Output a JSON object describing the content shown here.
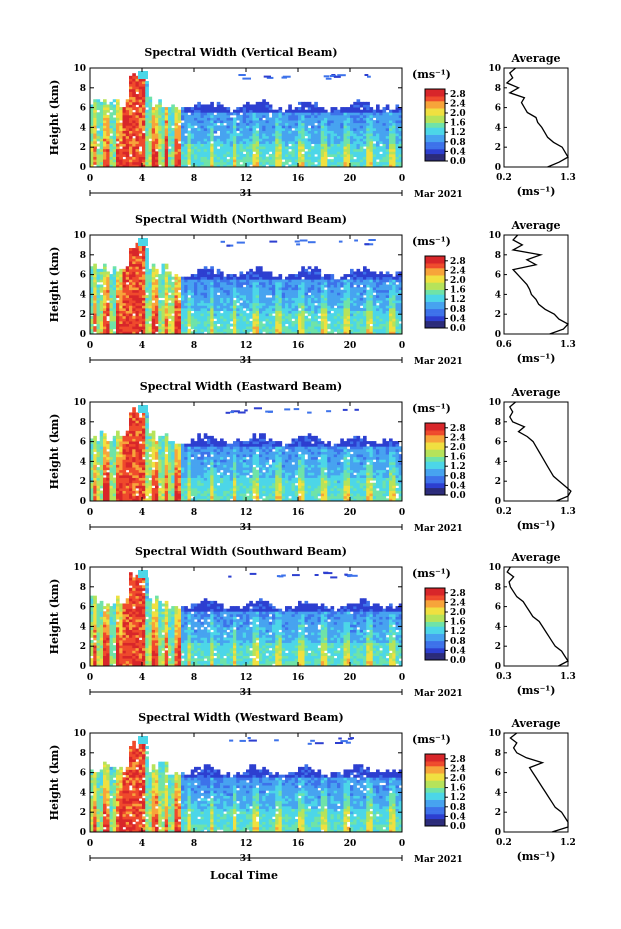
{
  "page": {
    "background": "#ffffff"
  },
  "shared": {
    "height_ticks": [
      "0",
      "2",
      "4",
      "6",
      "8",
      "10"
    ],
    "time_ticks": [
      "0",
      "4",
      "8",
      "12",
      "16",
      "20",
      "0"
    ],
    "day_label": "31",
    "date_label": "Mar 2021",
    "ylabel": "Height (km)",
    "xlabel": "Local Time",
    "colorbar_unit_label": "(ms⁻¹)",
    "colorbar_ticks": [
      "0.0",
      "0.4",
      "0.8",
      "1.2",
      "1.6",
      "2.0",
      "2.4",
      "2.8"
    ],
    "avg_title": "Average",
    "avg_unit_label": "(ms⁻¹)",
    "colormap": [
      "#2b2b7a",
      "#2d3fd0",
      "#3d72ea",
      "#47a3f0",
      "#4cd6e8",
      "#6fe3a8",
      "#b6e35a",
      "#f0e040",
      "#f7a43a",
      "#ef4a2c",
      "#d8262a"
    ]
  },
  "chart_data": [
    {
      "type": "heatmap",
      "title": "Spectral Width (Vertical Beam)",
      "x_range_hours": [
        0,
        24
      ],
      "y_range_km": [
        0,
        10
      ],
      "value_range": [
        0,
        3.0
      ],
      "avg_x_ticks": [
        "0.2",
        "1.3"
      ],
      "avg_x_range": [
        0.2,
        1.3
      ],
      "avg_profile": {
        "height_km": [
          0,
          0.5,
          1,
          1.5,
          2,
          2.5,
          3,
          3.5,
          4,
          4.5,
          5,
          5.5,
          6,
          6.5,
          7,
          7.5,
          8,
          8.5,
          9,
          9.5,
          10
        ],
        "value": [
          0.95,
          1.15,
          1.3,
          1.25,
          1.2,
          1.05,
          0.95,
          0.9,
          0.85,
          0.78,
          0.75,
          0.6,
          0.55,
          0.5,
          0.55,
          0.3,
          0.45,
          0.25,
          0.35,
          0.3,
          0.4
        ]
      }
    },
    {
      "type": "heatmap",
      "title": "Spectral Width (Northward Beam)",
      "x_range_hours": [
        0,
        24
      ],
      "y_range_km": [
        0,
        10
      ],
      "value_range": [
        0,
        3.0
      ],
      "avg_x_ticks": [
        "0.6",
        "1.3"
      ],
      "avg_x_range": [
        0.6,
        1.3
      ],
      "avg_profile": {
        "height_km": [
          0,
          0.5,
          1,
          1.5,
          2,
          2.5,
          3,
          3.5,
          4,
          4.5,
          5,
          5.5,
          6,
          6.5,
          7,
          7.5,
          8,
          8.5,
          9,
          9.5,
          10
        ],
        "value": [
          1.1,
          1.25,
          1.3,
          1.2,
          1.15,
          1.05,
          0.98,
          0.95,
          0.9,
          0.88,
          0.85,
          0.8,
          0.75,
          0.7,
          0.95,
          0.85,
          1.0,
          0.7,
          0.8,
          0.7,
          0.75
        ]
      }
    },
    {
      "type": "heatmap",
      "title": "Spectral Width (Eastward Beam)",
      "x_range_hours": [
        0,
        24
      ],
      "y_range_km": [
        0,
        10
      ],
      "value_range": [
        0,
        3.0
      ],
      "avg_x_ticks": [
        "0.2",
        "1.3"
      ],
      "avg_x_range": [
        0.2,
        1.3
      ],
      "avg_profile": {
        "height_km": [
          0,
          0.5,
          1,
          1.5,
          2,
          2.5,
          3,
          3.5,
          4,
          4.5,
          5,
          5.5,
          6,
          6.5,
          7,
          7.5,
          8,
          8.5,
          9,
          9.5,
          10
        ],
        "value": [
          1.1,
          1.3,
          1.35,
          1.25,
          1.15,
          1.05,
          1.0,
          0.95,
          0.9,
          0.85,
          0.8,
          0.75,
          0.7,
          0.6,
          0.45,
          0.55,
          0.35,
          0.3,
          0.35,
          0.3,
          0.4
        ]
      }
    },
    {
      "type": "heatmap",
      "title": "Spectral Width (Southward Beam)",
      "x_range_hours": [
        0,
        24
      ],
      "y_range_km": [
        0,
        10
      ],
      "value_range": [
        0,
        3.0
      ],
      "avg_x_ticks": [
        "0.3",
        "1.3"
      ],
      "avg_x_range": [
        0.3,
        1.3
      ],
      "avg_profile": {
        "height_km": [
          0,
          0.5,
          1,
          1.5,
          2,
          2.5,
          3,
          3.5,
          4,
          4.5,
          5,
          5.5,
          6,
          6.5,
          7,
          7.5,
          8,
          8.5,
          9,
          9.5,
          10
        ],
        "value": [
          1.15,
          1.3,
          1.25,
          1.2,
          1.1,
          1.05,
          1.0,
          0.95,
          0.9,
          0.85,
          0.75,
          0.7,
          0.65,
          0.6,
          0.5,
          0.45,
          0.4,
          0.38,
          0.45,
          0.35,
          0.4
        ]
      }
    },
    {
      "type": "heatmap",
      "title": "Spectral Width (Westward Beam)",
      "x_range_hours": [
        0,
        24
      ],
      "y_range_km": [
        0,
        10
      ],
      "value_range": [
        0,
        3.0
      ],
      "avg_x_ticks": [
        "0.2",
        "1.2"
      ],
      "avg_x_range": [
        0.2,
        1.2
      ],
      "avg_profile": {
        "height_km": [
          0,
          0.5,
          1,
          1.5,
          2,
          2.5,
          3,
          3.5,
          4,
          4.5,
          5,
          5.5,
          6,
          6.5,
          7,
          7.5,
          8,
          8.5,
          9,
          9.5,
          10
        ],
        "value": [
          0.95,
          1.2,
          1.2,
          1.15,
          1.1,
          1.0,
          0.95,
          0.9,
          0.85,
          0.8,
          0.75,
          0.7,
          0.65,
          0.6,
          0.8,
          0.55,
          0.4,
          0.35,
          0.4,
          0.3,
          0.4
        ]
      }
    }
  ]
}
